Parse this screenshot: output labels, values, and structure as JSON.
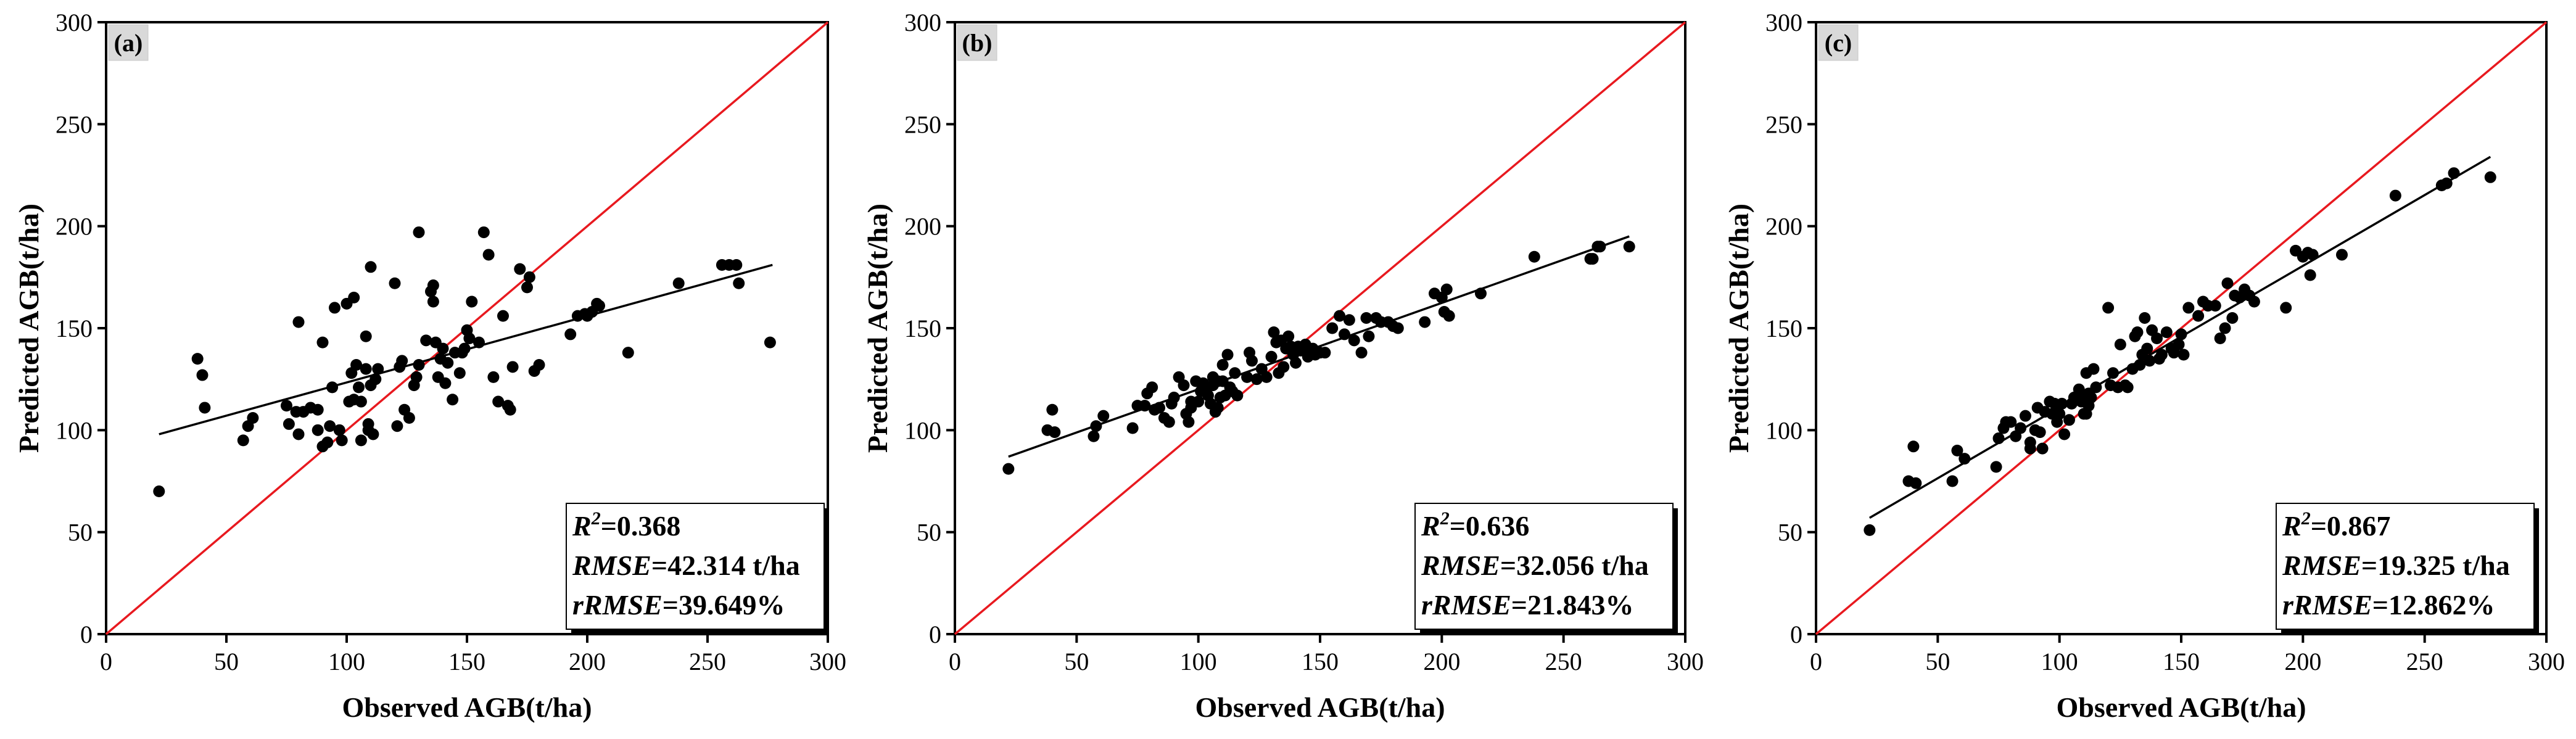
{
  "chart_data": [
    {
      "type": "scatter",
      "panel": "(a)",
      "xlabel": "Observed AGB(t/ha)",
      "ylabel": "Predicted AGB(t/ha)",
      "xlim": [
        0,
        300
      ],
      "ylim": [
        0,
        300
      ],
      "xticks": [
        "0",
        "50",
        "100",
        "150",
        "200",
        "250",
        "300"
      ],
      "yticks": [
        "0",
        "50",
        "100",
        "150",
        "200",
        "250",
        "300"
      ],
      "reference_line": "1:1",
      "fit_line": {
        "x1": 22,
        "y1": 98,
        "x2": 277,
        "y2": 181
      },
      "stats": {
        "r2_label": "R",
        "r2_sup": "2",
        "r2_value": "=0.368",
        "rmse_label": "RMSE",
        "rmse_value": "=42.314 t/ha",
        "rrmse_label": "rRMSE",
        "rrmse_value": "=39.649%"
      },
      "points": [
        [
          22,
          70
        ],
        [
          38,
          135
        ],
        [
          40,
          127
        ],
        [
          41,
          111
        ],
        [
          57,
          95
        ],
        [
          59,
          102
        ],
        [
          61,
          106
        ],
        [
          75,
          112
        ],
        [
          76,
          103
        ],
        [
          79,
          109
        ],
        [
          80,
          98
        ],
        [
          80,
          153
        ],
        [
          82,
          109
        ],
        [
          85,
          111
        ],
        [
          88,
          100
        ],
        [
          88,
          110
        ],
        [
          90,
          92
        ],
        [
          90,
          143
        ],
        [
          92,
          94
        ],
        [
          93,
          102
        ],
        [
          94,
          121
        ],
        [
          95,
          160
        ],
        [
          97,
          100
        ],
        [
          98,
          95
        ],
        [
          100,
          162
        ],
        [
          101,
          114
        ],
        [
          102,
          128
        ],
        [
          103,
          115
        ],
        [
          103,
          165
        ],
        [
          104,
          132
        ],
        [
          105,
          121
        ],
        [
          106,
          114
        ],
        [
          106,
          95
        ],
        [
          108,
          130
        ],
        [
          108,
          146
        ],
        [
          109,
          100
        ],
        [
          109,
          103
        ],
        [
          110,
          122
        ],
        [
          110,
          180
        ],
        [
          111,
          98
        ],
        [
          112,
          125
        ],
        [
          113,
          130
        ],
        [
          120,
          172
        ],
        [
          121,
          102
        ],
        [
          122,
          131
        ],
        [
          123,
          134
        ],
        [
          124,
          110
        ],
        [
          126,
          106
        ],
        [
          128,
          122
        ],
        [
          129,
          126
        ],
        [
          130,
          132
        ],
        [
          130,
          197
        ],
        [
          133,
          144
        ],
        [
          135,
          168
        ],
        [
          136,
          163
        ],
        [
          136,
          171
        ],
        [
          137,
          143
        ],
        [
          138,
          126
        ],
        [
          139,
          135
        ],
        [
          140,
          140
        ],
        [
          141,
          123
        ],
        [
          142,
          133
        ],
        [
          144,
          115
        ],
        [
          145,
          138
        ],
        [
          147,
          128
        ],
        [
          148,
          138
        ],
        [
          149,
          140
        ],
        [
          150,
          149
        ],
        [
          151,
          145
        ],
        [
          152,
          163
        ],
        [
          155,
          143
        ],
        [
          157,
          197
        ],
        [
          159,
          186
        ],
        [
          161,
          126
        ],
        [
          163,
          114
        ],
        [
          165,
          156
        ],
        [
          167,
          112
        ],
        [
          168,
          110
        ],
        [
          169,
          131
        ],
        [
          172,
          179
        ],
        [
          175,
          170
        ],
        [
          176,
          175
        ],
        [
          178,
          129
        ],
        [
          180,
          132
        ],
        [
          193,
          147
        ],
        [
          196,
          156
        ],
        [
          199,
          157
        ],
        [
          200,
          156
        ],
        [
          202,
          158
        ],
        [
          204,
          162
        ],
        [
          205,
          161
        ],
        [
          217,
          138
        ],
        [
          238,
          172
        ],
        [
          256,
          181
        ],
        [
          259,
          181
        ],
        [
          262,
          181
        ],
        [
          263,
          172
        ],
        [
          276,
          143
        ]
      ]
    },
    {
      "type": "scatter",
      "panel": "(b)",
      "xlabel": "Observed AGB(t/ha)",
      "ylabel": "Predicted AGB(t/ha)",
      "xlim": [
        0,
        300
      ],
      "ylim": [
        0,
        300
      ],
      "xticks": [
        "0",
        "50",
        "100",
        "150",
        "200",
        "250",
        "300"
      ],
      "yticks": [
        "0",
        "50",
        "100",
        "150",
        "200",
        "250",
        "300"
      ],
      "reference_line": "1:1",
      "fit_line": {
        "x1": 22,
        "y1": 87,
        "x2": 277,
        "y2": 195
      },
      "stats": {
        "r2_label": "R",
        "r2_sup": "2",
        "r2_value": "=0.636",
        "rmse_label": "RMSE",
        "rmse_value": "=32.056 t/ha",
        "rrmse_label": "rRMSE",
        "rrmse_value": "=21.843%"
      },
      "points": [
        [
          22,
          81
        ],
        [
          38,
          100
        ],
        [
          40,
          110
        ],
        [
          41,
          99
        ],
        [
          57,
          97
        ],
        [
          58,
          102
        ],
        [
          61,
          107
        ],
        [
          73,
          101
        ],
        [
          75,
          112
        ],
        [
          78,
          112
        ],
        [
          79,
          118
        ],
        [
          81,
          121
        ],
        [
          82,
          110
        ],
        [
          84,
          111
        ],
        [
          86,
          106
        ],
        [
          88,
          104
        ],
        [
          89,
          113
        ],
        [
          90,
          116
        ],
        [
          92,
          126
        ],
        [
          94,
          122
        ],
        [
          95,
          108
        ],
        [
          96,
          104
        ],
        [
          97,
          114
        ],
        [
          97,
          111
        ],
        [
          99,
          124
        ],
        [
          100,
          114
        ],
        [
          101,
          119
        ],
        [
          102,
          123
        ],
        [
          103,
          120
        ],
        [
          104,
          117
        ],
        [
          105,
          113
        ],
        [
          106,
          126
        ],
        [
          106,
          122
        ],
        [
          107,
          109
        ],
        [
          108,
          124
        ],
        [
          108,
          111
        ],
        [
          109,
          116
        ],
        [
          110,
          132
        ],
        [
          110,
          124
        ],
        [
          111,
          117
        ],
        [
          112,
          137
        ],
        [
          113,
          121
        ],
        [
          114,
          119
        ],
        [
          115,
          128
        ],
        [
          116,
          117
        ],
        [
          120,
          126
        ],
        [
          121,
          138
        ],
        [
          122,
          134
        ],
        [
          124,
          125
        ],
        [
          126,
          130
        ],
        [
          128,
          126
        ],
        [
          130,
          136
        ],
        [
          131,
          148
        ],
        [
          132,
          143
        ],
        [
          133,
          128
        ],
        [
          134,
          144
        ],
        [
          135,
          131
        ],
        [
          136,
          140
        ],
        [
          137,
          146
        ],
        [
          138,
          141
        ],
        [
          139,
          137
        ],
        [
          140,
          133
        ],
        [
          141,
          141
        ],
        [
          142,
          139
        ],
        [
          144,
          142
        ],
        [
          145,
          136
        ],
        [
          147,
          140
        ],
        [
          148,
          137
        ],
        [
          150,
          138
        ],
        [
          152,
          138
        ],
        [
          155,
          150
        ],
        [
          158,
          156
        ],
        [
          160,
          147
        ],
        [
          162,
          154
        ],
        [
          164,
          144
        ],
        [
          167,
          138
        ],
        [
          169,
          155
        ],
        [
          170,
          146
        ],
        [
          173,
          155
        ],
        [
          175,
          153
        ],
        [
          178,
          153
        ],
        [
          180,
          151
        ],
        [
          182,
          150
        ],
        [
          193,
          153
        ],
        [
          197,
          167
        ],
        [
          200,
          165
        ],
        [
          201,
          158
        ],
        [
          202,
          169
        ],
        [
          203,
          156
        ],
        [
          216,
          167
        ],
        [
          238,
          185
        ],
        [
          261,
          184
        ],
        [
          262,
          184
        ],
        [
          264,
          190
        ],
        [
          265,
          190
        ],
        [
          277,
          190
        ]
      ]
    },
    {
      "type": "scatter",
      "panel": "(c)",
      "xlabel": "Observed AGB(t/ha)",
      "ylabel": "Predicted AGB(t/ha)",
      "xlim": [
        0,
        300
      ],
      "ylim": [
        0,
        300
      ],
      "xticks": [
        "0",
        "50",
        "100",
        "150",
        "200",
        "250",
        "300"
      ],
      "yticks": [
        "0",
        "50",
        "100",
        "150",
        "200",
        "250",
        "300"
      ],
      "reference_line": "1:1",
      "fit_line": {
        "x1": 22,
        "y1": 57,
        "x2": 277,
        "y2": 234
      },
      "stats": {
        "r2_label": "R",
        "r2_sup": "2",
        "r2_value": "=0.867",
        "rmse_label": "RMSE",
        "rmse_value": "=19.325 t/ha",
        "rrmse_label": "rRMSE",
        "rrmse_value": "=12.862%"
      },
      "points": [
        [
          22,
          51
        ],
        [
          38,
          75
        ],
        [
          40,
          92
        ],
        [
          41,
          74
        ],
        [
          56,
          75
        ],
        [
          58,
          90
        ],
        [
          61,
          86
        ],
        [
          74,
          82
        ],
        [
          75,
          96
        ],
        [
          77,
          101
        ],
        [
          78,
          104
        ],
        [
          80,
          104
        ],
        [
          82,
          97
        ],
        [
          84,
          101
        ],
        [
          86,
          107
        ],
        [
          88,
          91
        ],
        [
          88,
          94
        ],
        [
          90,
          100
        ],
        [
          91,
          111
        ],
        [
          92,
          99
        ],
        [
          93,
          91
        ],
        [
          94,
          109
        ],
        [
          96,
          114
        ],
        [
          97,
          108
        ],
        [
          98,
          113
        ],
        [
          99,
          104
        ],
        [
          100,
          108
        ],
        [
          101,
          113
        ],
        [
          102,
          98
        ],
        [
          104,
          105
        ],
        [
          105,
          113
        ],
        [
          106,
          116
        ],
        [
          108,
          120
        ],
        [
          108,
          117
        ],
        [
          109,
          114
        ],
        [
          110,
          108
        ],
        [
          111,
          108
        ],
        [
          111,
          128
        ],
        [
          112,
          118
        ],
        [
          112,
          112
        ],
        [
          113,
          116
        ],
        [
          114,
          130
        ],
        [
          115,
          121
        ],
        [
          120,
          160
        ],
        [
          121,
          122
        ],
        [
          122,
          128
        ],
        [
          124,
          121
        ],
        [
          125,
          142
        ],
        [
          127,
          122
        ],
        [
          128,
          121
        ],
        [
          130,
          130
        ],
        [
          131,
          146
        ],
        [
          132,
          148
        ],
        [
          133,
          132
        ],
        [
          134,
          137
        ],
        [
          135,
          155
        ],
        [
          136,
          140
        ],
        [
          137,
          134
        ],
        [
          138,
          149
        ],
        [
          140,
          145
        ],
        [
          141,
          135
        ],
        [
          142,
          137
        ],
        [
          144,
          148
        ],
        [
          146,
          140
        ],
        [
          147,
          138
        ],
        [
          149,
          142
        ],
        [
          150,
          147
        ],
        [
          151,
          137
        ],
        [
          153,
          160
        ],
        [
          157,
          156
        ],
        [
          159,
          163
        ],
        [
          161,
          161
        ],
        [
          164,
          161
        ],
        [
          166,
          145
        ],
        [
          168,
          150
        ],
        [
          169,
          172
        ],
        [
          171,
          155
        ],
        [
          172,
          166
        ],
        [
          174,
          165
        ],
        [
          176,
          169
        ],
        [
          178,
          166
        ],
        [
          180,
          163
        ],
        [
          193,
          160
        ],
        [
          197,
          188
        ],
        [
          200,
          185
        ],
        [
          202,
          187
        ],
        [
          203,
          176
        ],
        [
          204,
          186
        ],
        [
          216,
          186
        ],
        [
          238,
          215
        ],
        [
          257,
          220
        ],
        [
          259,
          221
        ],
        [
          262,
          226
        ],
        [
          277,
          224
        ]
      ]
    }
  ]
}
